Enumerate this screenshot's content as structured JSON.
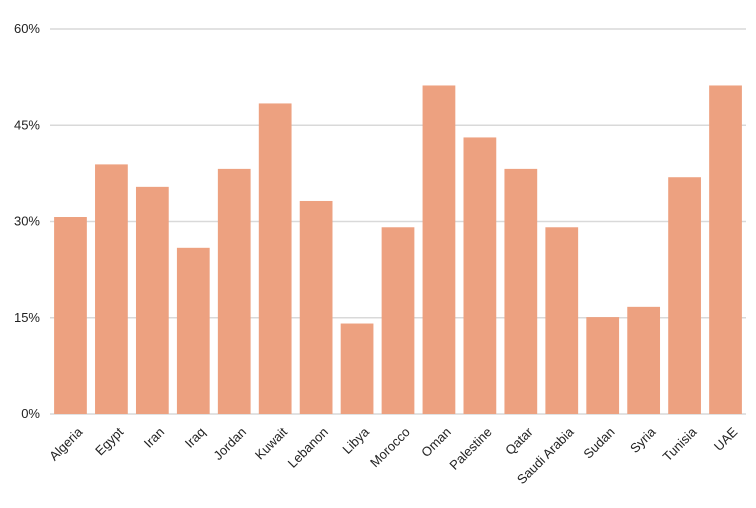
{
  "chart_data": {
    "type": "bar",
    "title": "",
    "xlabel": "",
    "ylabel": "",
    "ylim": [
      0,
      60
    ],
    "yticks": [
      0,
      15,
      30,
      45,
      60
    ],
    "ytick_labels": [
      "0%",
      "15%",
      "30%",
      "45%",
      "60%"
    ],
    "grid": true,
    "bar_color": "#EDA180",
    "categories": [
      "Algeria",
      "Egypt",
      "Iran",
      "Iraq",
      "Jordan",
      "Kuwait",
      "Lebanon",
      "Libya",
      "Morocco",
      "Oman",
      "Palestine",
      "Qatar",
      "Saudi Arabia",
      "Sudan",
      "Syria",
      "Tunisia",
      "UAE"
    ],
    "values": [
      30.7,
      38.9,
      35.4,
      25.9,
      38.2,
      48.4,
      33.2,
      14.1,
      29.1,
      51.2,
      43.1,
      38.2,
      29.1,
      15.1,
      16.7,
      36.9,
      51.2
    ]
  }
}
